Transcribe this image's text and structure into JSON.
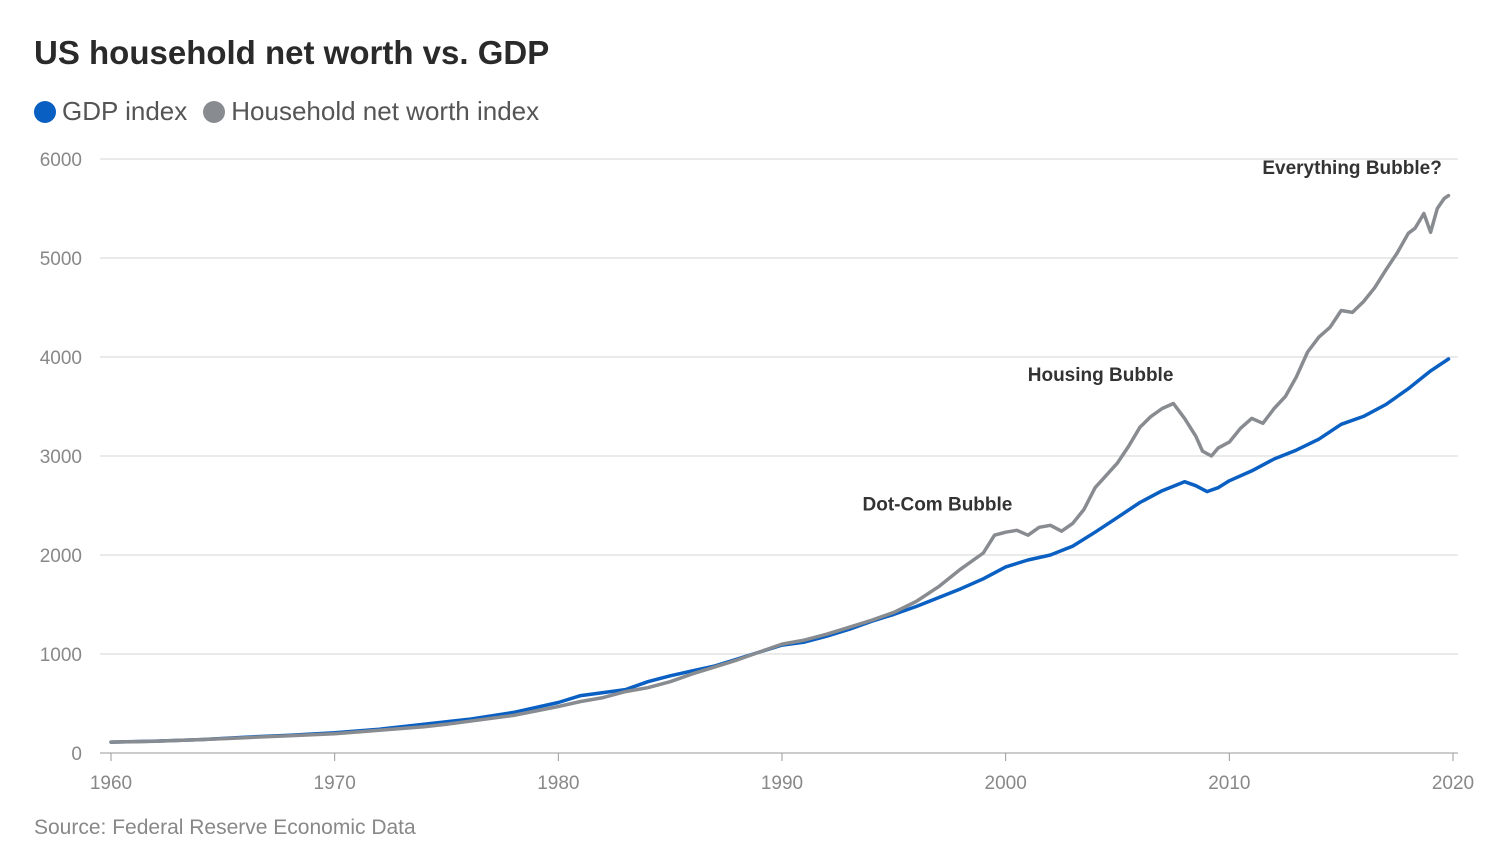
{
  "title": "US household net worth vs. GDP",
  "source": "Source: Federal Reserve Economic Data",
  "chart_data": {
    "type": "line",
    "title": "US household net worth vs. GDP",
    "xlabel": "",
    "ylabel": "",
    "xlim": [
      1960,
      2020
    ],
    "ylim": [
      0,
      6000
    ],
    "x_ticks": [
      "1960",
      "1970",
      "1980",
      "1990",
      "2000",
      "2010",
      "2020"
    ],
    "y_ticks": [
      "0",
      "1000",
      "2000",
      "3000",
      "4000",
      "5000",
      "6000"
    ],
    "grid": "horizontal",
    "legend_position": "top-left",
    "series": [
      {
        "name": "GDP index",
        "color": "#0a5fc2",
        "points": [
          [
            1960,
            110
          ],
          [
            1962,
            120
          ],
          [
            1964,
            135
          ],
          [
            1966,
            160
          ],
          [
            1968,
            180
          ],
          [
            1970,
            205
          ],
          [
            1972,
            240
          ],
          [
            1974,
            290
          ],
          [
            1976,
            340
          ],
          [
            1978,
            410
          ],
          [
            1980,
            510
          ],
          [
            1981,
            580
          ],
          [
            1982,
            610
          ],
          [
            1983,
            640
          ],
          [
            1984,
            720
          ],
          [
            1985,
            780
          ],
          [
            1986,
            830
          ],
          [
            1987,
            880
          ],
          [
            1988,
            950
          ],
          [
            1989,
            1020
          ],
          [
            1990,
            1090
          ],
          [
            1991,
            1120
          ],
          [
            1992,
            1180
          ],
          [
            1993,
            1250
          ],
          [
            1994,
            1330
          ],
          [
            1995,
            1400
          ],
          [
            1996,
            1480
          ],
          [
            1997,
            1570
          ],
          [
            1998,
            1660
          ],
          [
            1999,
            1760
          ],
          [
            2000,
            1880
          ],
          [
            2001,
            1950
          ],
          [
            2002,
            2000
          ],
          [
            2003,
            2090
          ],
          [
            2004,
            2230
          ],
          [
            2005,
            2380
          ],
          [
            2006,
            2530
          ],
          [
            2007,
            2650
          ],
          [
            2008,
            2740
          ],
          [
            2008.5,
            2700
          ],
          [
            2009,
            2640
          ],
          [
            2009.5,
            2680
          ],
          [
            2010,
            2750
          ],
          [
            2011,
            2850
          ],
          [
            2012,
            2970
          ],
          [
            2013,
            3060
          ],
          [
            2014,
            3170
          ],
          [
            2015,
            3320
          ],
          [
            2016,
            3400
          ],
          [
            2017,
            3520
          ],
          [
            2018,
            3680
          ],
          [
            2019,
            3860
          ],
          [
            2019.8,
            3980
          ]
        ]
      },
      {
        "name": "Household net worth index",
        "color": "#888c90",
        "points": [
          [
            1960,
            110
          ],
          [
            1962,
            118
          ],
          [
            1964,
            135
          ],
          [
            1966,
            155
          ],
          [
            1968,
            175
          ],
          [
            1970,
            195
          ],
          [
            1972,
            230
          ],
          [
            1974,
            265
          ],
          [
            1975,
            290
          ],
          [
            1976,
            320
          ],
          [
            1978,
            380
          ],
          [
            1980,
            470
          ],
          [
            1981,
            520
          ],
          [
            1982,
            560
          ],
          [
            1983,
            620
          ],
          [
            1984,
            660
          ],
          [
            1985,
            720
          ],
          [
            1986,
            800
          ],
          [
            1987,
            870
          ],
          [
            1988,
            940
          ],
          [
            1989,
            1020
          ],
          [
            1990,
            1100
          ],
          [
            1991,
            1140
          ],
          [
            1992,
            1200
          ],
          [
            1993,
            1270
          ],
          [
            1994,
            1340
          ],
          [
            1995,
            1420
          ],
          [
            1996,
            1530
          ],
          [
            1997,
            1680
          ],
          [
            1998,
            1860
          ],
          [
            1999,
            2020
          ],
          [
            1999.5,
            2200
          ],
          [
            2000,
            2230
          ],
          [
            2000.5,
            2250
          ],
          [
            2001,
            2200
          ],
          [
            2001.5,
            2280
          ],
          [
            2002,
            2300
          ],
          [
            2002.5,
            2240
          ],
          [
            2003,
            2320
          ],
          [
            2003.5,
            2460
          ],
          [
            2004,
            2680
          ],
          [
            2005,
            2930
          ],
          [
            2005.5,
            3100
          ],
          [
            2006,
            3290
          ],
          [
            2006.5,
            3400
          ],
          [
            2007,
            3480
          ],
          [
            2007.5,
            3530
          ],
          [
            2008,
            3380
          ],
          [
            2008.5,
            3200
          ],
          [
            2008.8,
            3050
          ],
          [
            2009.2,
            3000
          ],
          [
            2009.5,
            3080
          ],
          [
            2010,
            3140
          ],
          [
            2010.5,
            3280
          ],
          [
            2011,
            3380
          ],
          [
            2011.5,
            3330
          ],
          [
            2012,
            3480
          ],
          [
            2012.5,
            3600
          ],
          [
            2013,
            3800
          ],
          [
            2013.5,
            4050
          ],
          [
            2014,
            4200
          ],
          [
            2014.5,
            4300
          ],
          [
            2015,
            4470
          ],
          [
            2015.5,
            4450
          ],
          [
            2016,
            4560
          ],
          [
            2016.5,
            4700
          ],
          [
            2017,
            4880
          ],
          [
            2017.5,
            5050
          ],
          [
            2018,
            5250
          ],
          [
            2018.3,
            5300
          ],
          [
            2018.7,
            5450
          ],
          [
            2019,
            5260
          ],
          [
            2019.3,
            5500
          ],
          [
            2019.6,
            5600
          ],
          [
            2019.8,
            5630
          ]
        ]
      }
    ],
    "annotations": [
      {
        "text": "Everything Bubble?",
        "x": 2019.5,
        "y": 5850
      },
      {
        "text": "Housing Bubble",
        "x": 2007.5,
        "y": 3760
      },
      {
        "text": "Dot-Com Bubble",
        "x": 2000.3,
        "y": 2450
      }
    ]
  }
}
